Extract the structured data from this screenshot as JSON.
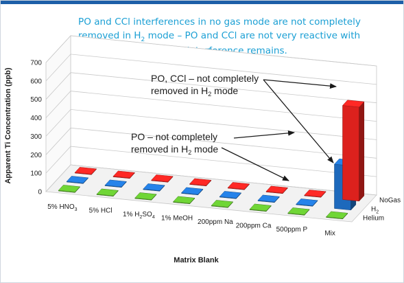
{
  "caption": {
    "line1": "PO and CCl interferences in no gas mode are not completely",
    "line2_pre": "removed in H",
    "line2_sub": "2",
    "line2_post": " mode – PO and CCl are not very reactive with",
    "line3_pre": "H",
    "line3_sub": "2",
    "line3_post": " cell gas, so residual interference remains."
  },
  "annotations": [
    {
      "line1": "PO, CCl – not completely",
      "line2_pre": "removed in H",
      "line2_sub": "2",
      "line2_post": " mode"
    },
    {
      "line1": "PO – not completely",
      "line2_pre": "removed in H",
      "line2_sub": "2",
      "line2_post": " mode"
    }
  ],
  "colors": {
    "caption": "#1a9fd4",
    "topbar": "#1d5fa8",
    "NoGas": "#e8231f",
    "H2": "#1f6fc6",
    "Helium": "#5fb52e"
  },
  "chart_data": {
    "type": "bar",
    "three_d": true,
    "xlabel": "Matrix Blank",
    "ylabel": "Apparent Ti Concentration (ppb)",
    "ylim": [
      0,
      700
    ],
    "yticks": [
      0,
      100,
      200,
      300,
      400,
      500,
      600,
      700
    ],
    "grid": true,
    "categories": [
      {
        "pre": "5% HNO",
        "sub": "3",
        "post": ""
      },
      {
        "pre": "5% HCl",
        "sub": "",
        "post": ""
      },
      {
        "pre": "1% H",
        "sub": "2",
        "post": "SO",
        "sub2": "4"
      },
      {
        "pre": "1% MeOH",
        "sub": "",
        "post": ""
      },
      {
        "pre": "200ppm Na",
        "sub": "",
        "post": ""
      },
      {
        "pre": "200ppm Ca",
        "sub": "",
        "post": ""
      },
      {
        "pre": "500ppm P",
        "sub": "",
        "post": ""
      },
      {
        "pre": "Mix",
        "sub": "",
        "post": ""
      }
    ],
    "series": [
      {
        "name": "NoGas",
        "label_pre": "NoGas",
        "label_sub": "",
        "values": [
          2,
          2,
          2,
          2,
          2,
          2,
          2,
          510
        ]
      },
      {
        "name": "H2",
        "label_pre": "H",
        "label_sub": "2",
        "values": [
          2,
          2,
          2,
          2,
          2,
          2,
          2,
          240
        ]
      },
      {
        "name": "Helium",
        "label_pre": "Helium",
        "label_sub": "",
        "values": [
          0.5,
          0.5,
          0.5,
          0.5,
          0.5,
          0.5,
          0.5,
          0.5
        ]
      }
    ]
  }
}
